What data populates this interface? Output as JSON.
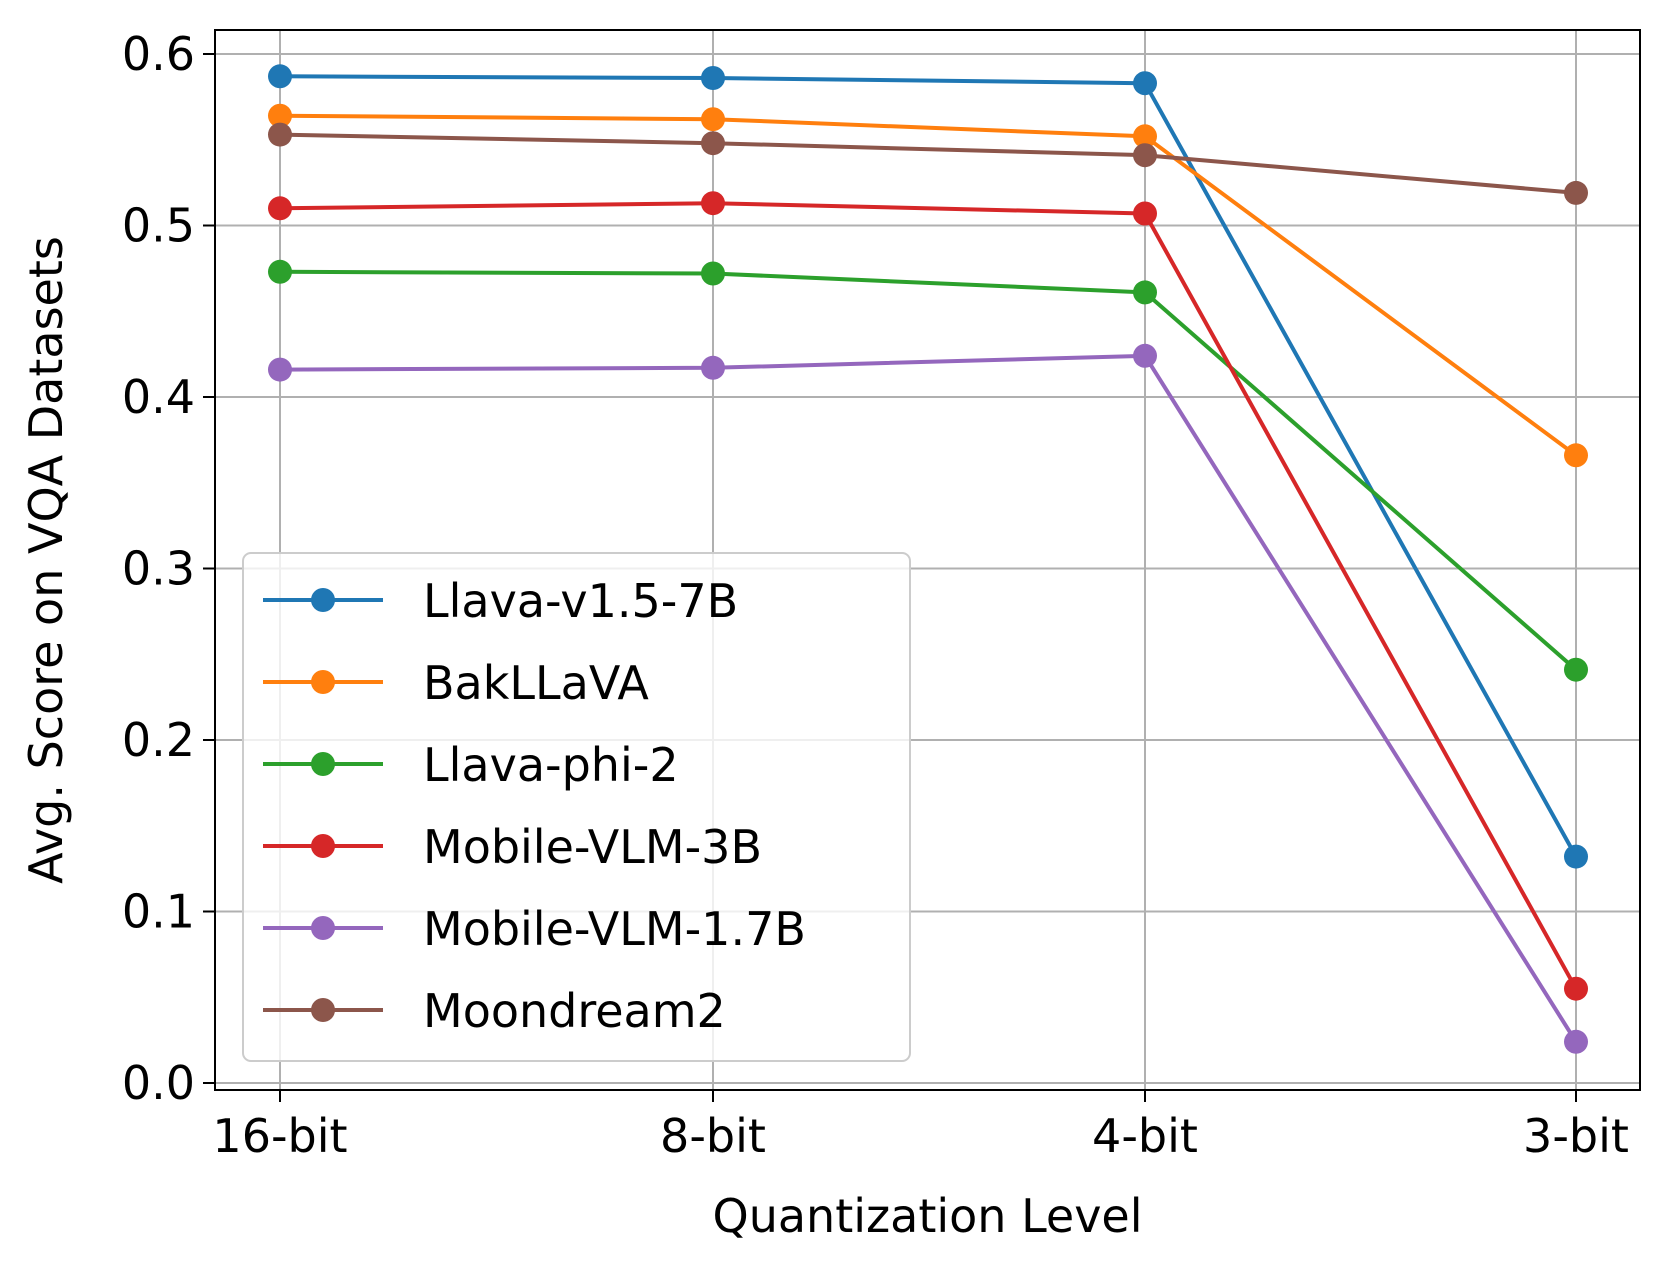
{
  "chart_data": {
    "type": "line",
    "title": "",
    "xlabel": "Quantization Level",
    "ylabel": "Avg. Score on VQA Datasets",
    "categories": [
      "16-bit",
      "8-bit",
      "4-bit",
      "3-bit"
    ],
    "ylim": [
      0.0,
      0.6
    ],
    "yticks": [
      "0.0",
      "0.1",
      "0.2",
      "0.3",
      "0.4",
      "0.5",
      "0.6"
    ],
    "grid": true,
    "legend_position": "lower-left",
    "series": [
      {
        "name": "Llava-v1.5-7B",
        "color": "#1f77b4",
        "values": [
          0.587,
          0.586,
          0.583,
          0.132
        ]
      },
      {
        "name": "BakLLaVA",
        "color": "#ff7f0e",
        "values": [
          0.564,
          0.562,
          0.552,
          0.366
        ]
      },
      {
        "name": "Llava-phi-2",
        "color": "#2ca02c",
        "values": [
          0.473,
          0.472,
          0.461,
          0.241
        ]
      },
      {
        "name": "Mobile-VLM-3B",
        "color": "#d62728",
        "values": [
          0.51,
          0.513,
          0.507,
          0.055
        ]
      },
      {
        "name": "Mobile-VLM-1.7B",
        "color": "#9467bd",
        "values": [
          0.416,
          0.417,
          0.424,
          0.024
        ]
      },
      {
        "name": "Moondream2",
        "color": "#8c564b",
        "values": [
          0.553,
          0.548,
          0.541,
          0.519
        ]
      }
    ]
  }
}
